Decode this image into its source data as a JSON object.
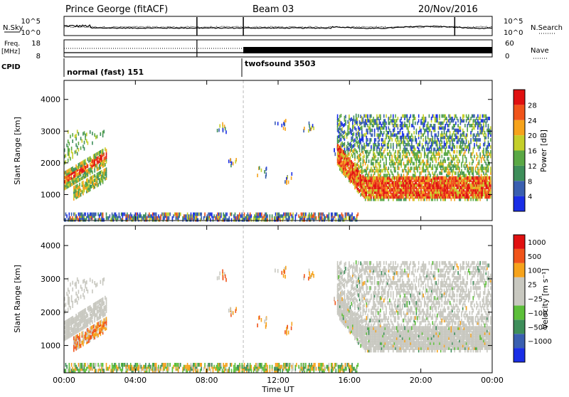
{
  "header": {
    "station": "Prince George (fitACF)",
    "beam": "Beam 03",
    "date": "20/Nov/2016"
  },
  "colors": {
    "power": [
      "#1a2ee6",
      "#3a5fb0",
      "#3e8e5a",
      "#5aa845",
      "#c4cf2a",
      "#f6a31c",
      "#f0541a",
      "#e01010"
    ],
    "velocity": [
      "#e01010",
      "#f0541a",
      "#f6a31c",
      "#c8c8c0",
      "#c8c8c0",
      "#5cbf3a",
      "#3e8e5a",
      "#3a5fb0",
      "#1a2ee6"
    ],
    "gray": "#c8c8c0"
  },
  "chart_data": [
    {
      "type": "line",
      "name": "noise",
      "left_label": "N.Sky",
      "right_label": "N.Search",
      "left_ticks": [
        "10^5",
        "10^0"
      ],
      "right_ticks": [
        "10^5",
        "10^0"
      ],
      "series": [
        {
          "name": "N.Sky",
          "style": "solid"
        },
        {
          "name": "N.Search",
          "style": "dotted"
        }
      ]
    },
    {
      "type": "line",
      "name": "freq-nave",
      "left_label_1": "Freq.",
      "left_label_2": "[MHz]",
      "right_label": "Nave",
      "left_ticks": [
        "18",
        "8"
      ],
      "right_ticks": [
        "60",
        "0"
      ],
      "series": [
        {
          "name": "Freq.",
          "style": "solid"
        },
        {
          "name": "Nave",
          "style": "dotted"
        }
      ]
    },
    {
      "type": "table",
      "name": "cpid",
      "label": "CPID",
      "segments": [
        {
          "start_hour": 0,
          "end_hour": 10.0,
          "text": "normal (fast) 151"
        },
        {
          "start_hour": 10.0,
          "end_hour": 24,
          "text": "twofsound 3503"
        }
      ]
    },
    {
      "type": "heatmap",
      "name": "power",
      "ylabel": "Slant Range [km]",
      "yticks": [
        1000,
        2000,
        3000,
        4000
      ],
      "ylim": [
        180,
        4600
      ],
      "colorbar_label": "Power [dB]",
      "colorbar_ticks": [
        "4",
        "8",
        "12",
        "16",
        "20",
        "24",
        "28"
      ]
    },
    {
      "type": "heatmap",
      "name": "velocity",
      "ylabel": "Slant Range [km]",
      "yticks": [
        1000,
        2000,
        3000,
        4000
      ],
      "ylim": [
        180,
        4600
      ],
      "colorbar_label": "Velocity [m s⁻¹]",
      "colorbar_ticks": [
        "1000",
        "500",
        "100",
        "25",
        "−25",
        "−100",
        "−500",
        "−1000"
      ],
      "xlabel": "Time UT",
      "xticks": [
        "00:00",
        "04:00",
        "08:00",
        "12:00",
        "16:00",
        "20:00",
        "00:00"
      ]
    }
  ]
}
